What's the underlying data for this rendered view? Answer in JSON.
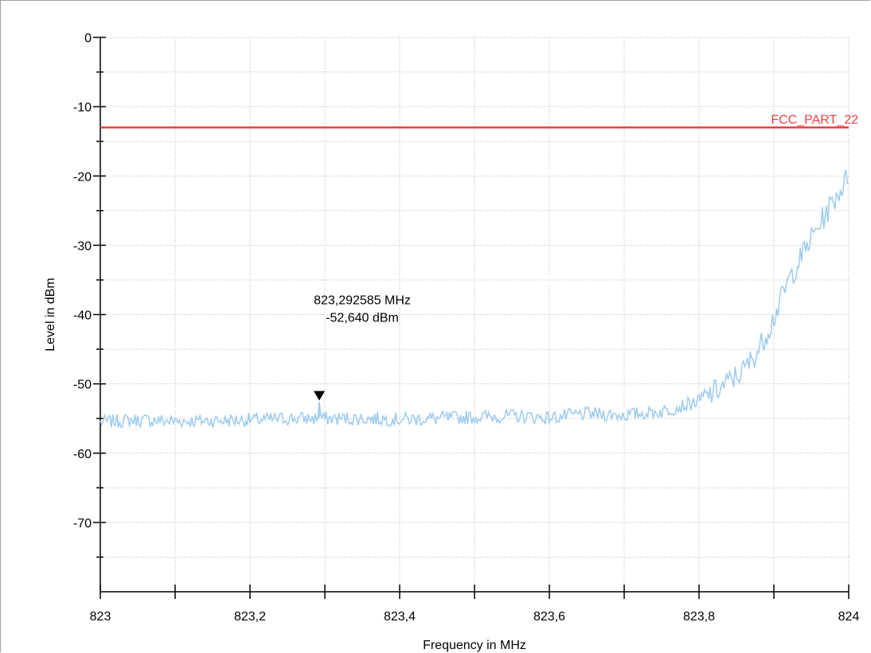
{
  "chart_data": {
    "type": "line",
    "xlabel": "Frequency in MHz",
    "ylabel": "Level in dBm",
    "xlim": [
      823,
      824
    ],
    "ylim": [
      -80,
      0
    ],
    "x_major_ticks": [
      823,
      823.2,
      823.4,
      823.6,
      823.8,
      824
    ],
    "x_tick_labels": [
      "823",
      "823,2",
      "823,4",
      "823,6",
      "823,8",
      "824"
    ],
    "x_minor_ticks": [
      823.1,
      823.3,
      823.5,
      823.7,
      823.9
    ],
    "y_major_ticks": [
      0,
      -10,
      -20,
      -30,
      -40,
      -50,
      -60,
      -70
    ],
    "y_tick_labels": [
      "0",
      "-10",
      "-20",
      "-30",
      "-40",
      "-50",
      "-60",
      "-70"
    ],
    "y_minor_ticks": [
      -5,
      -15,
      -25,
      -35,
      -45,
      -55,
      -65,
      -75
    ],
    "grid": true,
    "series": [
      {
        "color": "#9ecbf0",
        "x": [
          823,
          823.05,
          823.1,
          823.15,
          823.2,
          823.25,
          823.29,
          823.2926,
          823.295,
          823.35,
          823.4,
          823.45,
          823.5,
          823.55,
          823.6,
          823.65,
          823.7,
          823.75,
          823.8,
          823.83,
          823.86,
          823.88,
          823.9,
          823.92,
          823.95,
          823.98,
          824
        ],
        "y": [
          -55.5,
          -55.2,
          -55.4,
          -55.3,
          -55.2,
          -55.0,
          -55.0,
          -52.64,
          -55.0,
          -55.0,
          -55.1,
          -55.0,
          -54.8,
          -54.6,
          -54.9,
          -54.3,
          -54.5,
          -54.0,
          -52.5,
          -50.5,
          -48.0,
          -45.0,
          -40.5,
          -35.0,
          -29.0,
          -23.5,
          -20.0
        ]
      }
    ],
    "limit_lines": [
      {
        "name": "FCC_PART_22",
        "y": -13,
        "color": "#f04040"
      }
    ],
    "marker": {
      "x": 823.292585,
      "y": -52.64,
      "line1": "823,292585 MHz",
      "line2": "-52,640 dBm",
      "label_x": 823.35,
      "label_y": -38.5
    }
  }
}
